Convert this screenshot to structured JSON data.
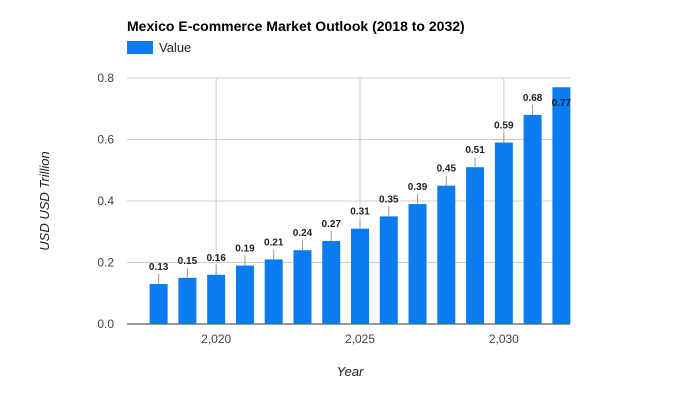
{
  "chart_data": {
    "type": "bar",
    "title": "Mexico E-commerce Market Outlook (2018 to 2032)",
    "xlabel": "Year",
    "ylabel": "USD USD Trillion",
    "legend": {
      "position": "top-left",
      "entries": [
        "Value"
      ]
    },
    "series": [
      {
        "name": "Value",
        "color": "#0a7cf0",
        "x": [
          2018,
          2019,
          2020,
          2021,
          2022,
          2023,
          2024,
          2025,
          2026,
          2027,
          2028,
          2029,
          2030,
          2031,
          2032
        ],
        "values": [
          0.13,
          0.15,
          0.16,
          0.19,
          0.21,
          0.24,
          0.27,
          0.31,
          0.35,
          0.39,
          0.45,
          0.51,
          0.59,
          0.68,
          0.77
        ],
        "value_labels": [
          "0.13",
          "0.15",
          "0.16",
          "0.19",
          "0.21",
          "0.24",
          "0.27",
          "0.31",
          "0.35",
          "0.39",
          "0.45",
          "0.51",
          "0.59",
          "0.68",
          "0.77"
        ]
      }
    ],
    "xlim": [
      2016.9,
      2032.3
    ],
    "ylim": [
      0,
      0.8
    ],
    "x_ticks": [
      2020,
      2025,
      2030
    ],
    "x_tick_labels": [
      "2,020",
      "2,025",
      "2,030"
    ],
    "y_ticks": [
      0,
      0.2,
      0.4,
      0.6,
      0.8
    ],
    "y_tick_labels": [
      "0.0",
      "0.2",
      "0.4",
      "0.6",
      "0.8"
    ],
    "grid": true
  }
}
